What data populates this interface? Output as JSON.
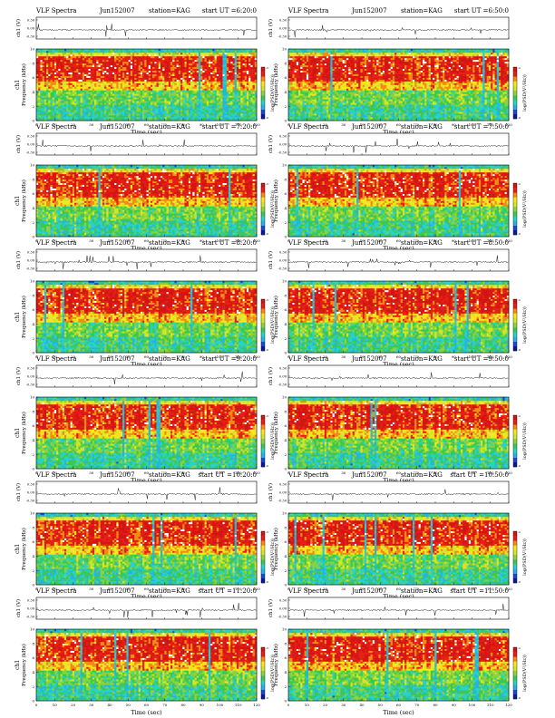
{
  "colors": {
    "scale": [
      "#0a1c8c",
      "#1e46d2",
      "#24b4e0",
      "#28d2c8",
      "#3cc850",
      "#8cd23c",
      "#d2e628",
      "#fae61e",
      "#f08c14",
      "#e61e14",
      "#d21414",
      "#ffffff"
    ],
    "trace": "#000000"
  },
  "chart_data": [
    {
      "type": "heatmap",
      "title": "VLF Spectra",
      "date": "Jun152007",
      "station": "station=KAG",
      "start": "start UT =6:20:0",
      "y1label": "ch1 (V)",
      "y2label": "Frequency (kHz)",
      "side_label": "ch1",
      "xlabel": "Time (sec)",
      "xticks": [
        "0",
        "10",
        "20",
        "30",
        "40",
        "50",
        "60",
        "70",
        "80",
        "90",
        "100",
        "110",
        "120"
      ],
      "yticks": [
        "0",
        "2",
        "4",
        "6",
        "8",
        "10"
      ],
      "trace_ticks": [
        "0.30",
        "0.00",
        "-0.30"
      ],
      "colorbar_label": "log(PSD(V²/Hz))",
      "colorbar_ticks": [
        "-2",
        "-8"
      ],
      "xlim": [
        0,
        120
      ],
      "ylim": [
        0,
        10
      ]
    },
    {
      "type": "heatmap",
      "title": "VLF Spectra",
      "date": "Jun152007",
      "station": "station=KAG",
      "start": "start UT =6:50:0",
      "y1label": "ch1 (V)",
      "y2label": "Frequency (kHz)",
      "side_label": "",
      "xlabel": "Time (sec)",
      "xticks": [
        "0",
        "10",
        "20",
        "30",
        "40",
        "50",
        "60",
        "70",
        "80",
        "90",
        "100",
        "110",
        "120"
      ],
      "yticks": [
        "0",
        "2",
        "4",
        "6",
        "8",
        "10"
      ],
      "trace_ticks": [
        "0.30",
        "0.00",
        "-0.30"
      ],
      "colorbar_label": "log(PSD(V²/Hz))",
      "colorbar_ticks": [
        "-2",
        "-8"
      ],
      "xlim": [
        0,
        120
      ],
      "ylim": [
        0,
        10
      ]
    },
    {
      "type": "heatmap",
      "title": "VLF Spectra",
      "date": "Jun152007",
      "station": "station=KAG",
      "start": "start UT =7:20:0",
      "y1label": "ch1 (V)",
      "y2label": "Frequency (kHz)",
      "side_label": "ch1",
      "xlabel": "Time (sec)",
      "xticks": [
        "0",
        "10",
        "20",
        "30",
        "40",
        "50",
        "60",
        "70",
        "80",
        "90",
        "100",
        "110",
        "120"
      ],
      "yticks": [
        "0",
        "2",
        "4",
        "6",
        "8",
        "10"
      ],
      "trace_ticks": [
        "0.30",
        "0.00",
        "-0.30"
      ],
      "colorbar_label": "log(PSD(V²/Hz))",
      "colorbar_ticks": [
        "-2",
        "-8"
      ],
      "xlim": [
        0,
        120
      ],
      "ylim": [
        0,
        10
      ]
    },
    {
      "type": "heatmap",
      "title": "VLF Spectra",
      "date": "Jun152007",
      "station": "station=KAG",
      "start": "start UT =7:50:0",
      "y1label": "ch1 (V)",
      "y2label": "Frequency (kHz)",
      "side_label": "",
      "xlabel": "Time (sec)",
      "xticks": [
        "0",
        "10",
        "20",
        "30",
        "40",
        "50",
        "60",
        "70",
        "80",
        "90",
        "100",
        "110",
        "120"
      ],
      "yticks": [
        "0",
        "2",
        "4",
        "6",
        "8",
        "10"
      ],
      "trace_ticks": [
        "0.30",
        "0.00",
        "-0.30"
      ],
      "colorbar_label": "log(PSD(V²/Hz))",
      "colorbar_ticks": [
        "-2",
        "-8"
      ],
      "xlim": [
        0,
        120
      ],
      "ylim": [
        0,
        10
      ]
    },
    {
      "type": "heatmap",
      "title": "VLF Spectra",
      "date": "Jun152007",
      "station": "station=KAG",
      "start": "start UT =8:20:0",
      "y1label": "ch1 (V)",
      "y2label": "Frequency (kHz)",
      "side_label": "ch1",
      "xlabel": "Time (sec)",
      "xticks": [
        "0",
        "10",
        "20",
        "30",
        "40",
        "50",
        "60",
        "70",
        "80",
        "90",
        "100",
        "110",
        "120"
      ],
      "yticks": [
        "0",
        "2",
        "4",
        "6",
        "8",
        "10"
      ],
      "trace_ticks": [
        "0.30",
        "0.00",
        "-0.30"
      ],
      "colorbar_label": "log(PSD(V²/Hz))",
      "colorbar_ticks": [
        "-2",
        "-8"
      ],
      "xlim": [
        0,
        120
      ],
      "ylim": [
        0,
        10
      ]
    },
    {
      "type": "heatmap",
      "title": "VLF Spectra",
      "date": "Jun152007",
      "station": "station=KAG",
      "start": "start UT =8:50:0",
      "y1label": "ch1 (V)",
      "y2label": "Frequency (kHz)",
      "side_label": "",
      "xlabel": "Time (sec)",
      "xticks": [
        "0",
        "10",
        "20",
        "30",
        "40",
        "50",
        "60",
        "70",
        "80",
        "90",
        "100",
        "110",
        "120"
      ],
      "yticks": [
        "0",
        "2",
        "4",
        "6",
        "8",
        "10"
      ],
      "trace_ticks": [
        "0.30",
        "0.00",
        "-0.30"
      ],
      "colorbar_label": "log(PSD(V²/Hz))",
      "colorbar_ticks": [
        "-2",
        "-8"
      ],
      "xlim": [
        0,
        120
      ],
      "ylim": [
        0,
        10
      ]
    },
    {
      "type": "heatmap",
      "title": "VLF Spectra",
      "date": "Jun152007",
      "station": "station=KAG",
      "start": "start UT =9:20:0",
      "y1label": "ch1 (V)",
      "y2label": "Frequency (kHz)",
      "side_label": "ch1",
      "xlabel": "Time (sec)",
      "xticks": [
        "0",
        "10",
        "20",
        "30",
        "40",
        "50",
        "60",
        "70",
        "80",
        "90",
        "100",
        "110",
        "120"
      ],
      "yticks": [
        "0",
        "2",
        "4",
        "6",
        "8",
        "10"
      ],
      "trace_ticks": [
        "0.30",
        "0.00",
        "-0.30"
      ],
      "colorbar_label": "log(PSD(V²/Hz))",
      "colorbar_ticks": [
        "-2",
        "-8"
      ],
      "xlim": [
        0,
        120
      ],
      "ylim": [
        0,
        10
      ]
    },
    {
      "type": "heatmap",
      "title": "VLF Spectra",
      "date": "Jun152007",
      "station": "station=KAG",
      "start": "start UT =9:50:0",
      "y1label": "ch1 (V)",
      "y2label": "Frequency (kHz)",
      "side_label": "",
      "xlabel": "Time (sec)",
      "xticks": [
        "0",
        "10",
        "20",
        "30",
        "40",
        "50",
        "60",
        "70",
        "80",
        "90",
        "100",
        "110",
        "120"
      ],
      "yticks": [
        "0",
        "2",
        "4",
        "6",
        "8",
        "10"
      ],
      "trace_ticks": [
        "0.30",
        "0.00",
        "-0.30"
      ],
      "colorbar_label": "log(PSD(V²/Hz))",
      "colorbar_ticks": [
        "-2",
        "-8"
      ],
      "xlim": [
        0,
        120
      ],
      "ylim": [
        0,
        10
      ]
    },
    {
      "type": "heatmap",
      "title": "VLF Spectra",
      "date": "Jun152007",
      "station": "station=KAG",
      "start": "start UT =10:20:0",
      "y1label": "ch1 (V)",
      "y2label": "Frequency (kHz)",
      "side_label": "ch1",
      "xlabel": "Time (sec)",
      "xticks": [
        "0",
        "10",
        "20",
        "30",
        "40",
        "50",
        "60",
        "70",
        "80",
        "90",
        "100",
        "110",
        "120"
      ],
      "yticks": [
        "0",
        "2",
        "4",
        "6",
        "8",
        "10"
      ],
      "trace_ticks": [
        "0.30",
        "0.00",
        "-0.30"
      ],
      "colorbar_label": "log(PSD(V²/Hz))",
      "colorbar_ticks": [
        "-2",
        "-8"
      ],
      "xlim": [
        0,
        120
      ],
      "ylim": [
        0,
        10
      ]
    },
    {
      "type": "heatmap",
      "title": "VLF Spectra",
      "date": "Jun152007",
      "station": "station=KAG",
      "start": "start UT =10:50:0",
      "y1label": "ch1 (V)",
      "y2label": "Frequency (kHz)",
      "side_label": "",
      "xlabel": "Time (sec)",
      "xticks": [
        "0",
        "10",
        "20",
        "30",
        "40",
        "50",
        "60",
        "70",
        "80",
        "90",
        "100",
        "110",
        "120"
      ],
      "yticks": [
        "0",
        "2",
        "4",
        "6",
        "8",
        "10"
      ],
      "trace_ticks": [
        "0.30",
        "0.00",
        "-0.30"
      ],
      "colorbar_label": "log(PSD(V²/Hz))",
      "colorbar_ticks": [
        "-2",
        "-8"
      ],
      "xlim": [
        0,
        120
      ],
      "ylim": [
        0,
        10
      ]
    },
    {
      "type": "heatmap",
      "title": "VLF Spectra",
      "date": "Jun152007",
      "station": "station=KAG",
      "start": "start UT =11:20:0",
      "y1label": "ch1 (V)",
      "y2label": "Frequency (kHz)",
      "side_label": "ch1",
      "xlabel": "Time (sec)",
      "xticks": [
        "0",
        "10",
        "20",
        "30",
        "40",
        "50",
        "60",
        "70",
        "80",
        "90",
        "100",
        "110",
        "120"
      ],
      "yticks": [
        "0",
        "2",
        "4",
        "6",
        "8",
        "10"
      ],
      "trace_ticks": [
        "0.30",
        "0.00",
        "-0.30"
      ],
      "colorbar_label": "log(PSD(V²/Hz))",
      "colorbar_ticks": [
        "-2",
        "-8"
      ],
      "xlim": [
        0,
        120
      ],
      "ylim": [
        0,
        10
      ]
    },
    {
      "type": "heatmap",
      "title": "VLF Spectra",
      "date": "Jun152007",
      "station": "station=KAG",
      "start": "start UT =11:50:0",
      "y1label": "ch1 (V)",
      "y2label": "Frequency (kHz)",
      "side_label": "",
      "xlabel": "Time (sec)",
      "xticks": [
        "0",
        "10",
        "20",
        "30",
        "40",
        "50",
        "60",
        "70",
        "80",
        "90",
        "100",
        "110",
        "120"
      ],
      "yticks": [
        "0",
        "2",
        "4",
        "6",
        "8",
        "10"
      ],
      "trace_ticks": [
        "0.30",
        "0.00",
        "-0.30"
      ],
      "colorbar_label": "log(PSD(V²/Hz))",
      "colorbar_ticks": [
        "-2",
        "-8"
      ],
      "xlim": [
        0,
        120
      ],
      "ylim": [
        0,
        10
      ]
    }
  ]
}
